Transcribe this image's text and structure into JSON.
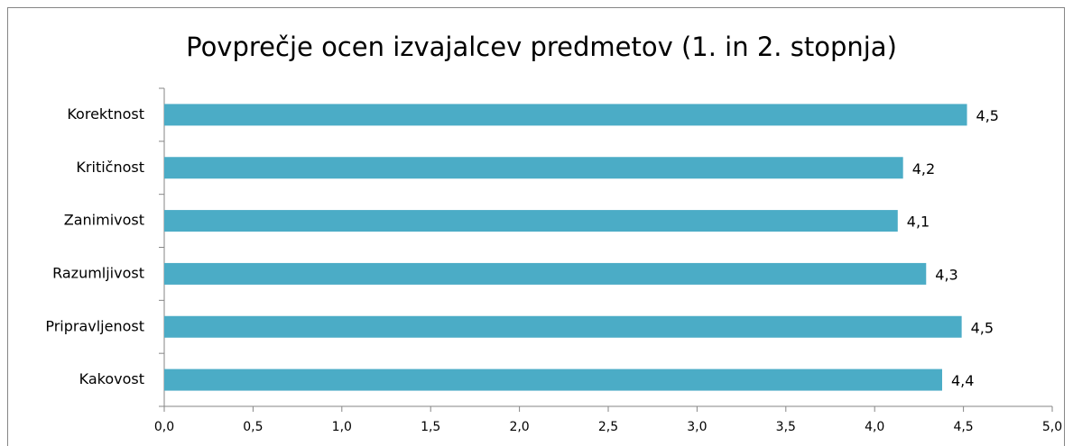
{
  "chart_data": {
    "type": "hbar",
    "title": "Povprečje ocen izvajalcev predmetov (1. in 2. stopnja)",
    "categories": [
      "Korektnost",
      "Kritičnost",
      "Zanimivost",
      "Razumljivost",
      "Pripravljenost",
      "Kakovost"
    ],
    "values": [
      4.52,
      4.16,
      4.13,
      4.29,
      4.49,
      4.38
    ],
    "value_labels": [
      "4,5",
      "4,2",
      "4,1",
      "4,3",
      "4,5",
      "4,4"
    ],
    "color": "#4bacc6",
    "xlim": [
      0,
      5
    ],
    "xticks": [
      {
        "value": 0,
        "label": "0,0"
      },
      {
        "value": 0.5,
        "label": "0,5"
      },
      {
        "value": 1,
        "label": "1,0"
      },
      {
        "value": 1.5,
        "label": "1,5"
      },
      {
        "value": 2,
        "label": "2,0"
      },
      {
        "value": 2.5,
        "label": "2,5"
      },
      {
        "value": 3,
        "label": "3,0"
      },
      {
        "value": 3.5,
        "label": "3,5"
      },
      {
        "value": 4,
        "label": "4,0"
      },
      {
        "value": 4.5,
        "label": "4,5"
      },
      {
        "value": 5,
        "label": "5,0"
      }
    ],
    "grid": false
  }
}
